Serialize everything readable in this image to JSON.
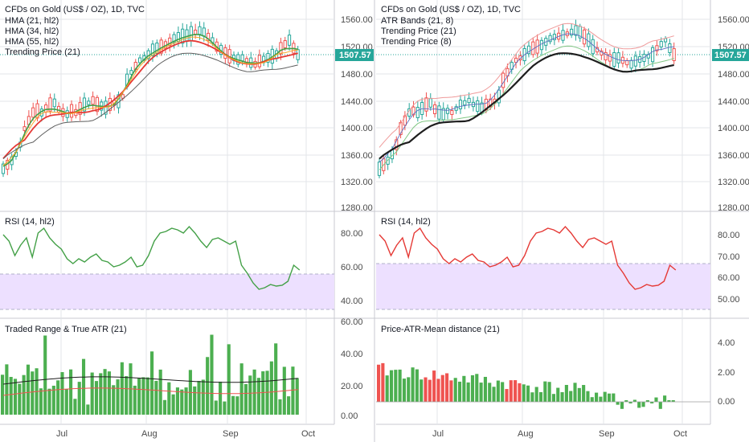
{
  "colors": {
    "up": "#26a69a",
    "down": "#ef5350",
    "grid": "#e3e5ea",
    "border": "#c8cad0",
    "price_line": "#26a69a",
    "rsi_left": "#43a047",
    "rsi_right": "#e53935",
    "rsi_band": "#ede0ff",
    "vol_green": "#4caf50",
    "vol_red": "#ef5350",
    "hma21": "#e53935",
    "hma34": "#43a047",
    "hma55": "#f9a825",
    "trend": "#5d5d5d"
  },
  "left": {
    "title": "CFDs on Gold (US$ / OZ), 1D, TVC",
    "legend": [
      "HMA (21, hl2)",
      "HMA (34, hl2)",
      "HMA (55, hl2)",
      "Trending Price (21)"
    ],
    "rsi_title": "RSI (14, hl2)",
    "vol_title": "Traded Range & True ATR (21)",
    "price_ticks": [
      "1560.00",
      "1520.00",
      "1480.00",
      "1440.00",
      "1400.00",
      "1360.00",
      "1320.00",
      "1280.00"
    ],
    "rsi_ticks": [
      "80.00",
      "60.00",
      "40.00"
    ],
    "vol_ticks": [
      "60.00",
      "40.00",
      "20.00",
      "0.00"
    ],
    "x_ticks": [
      "Jul",
      "Aug",
      "Sep",
      "Oct"
    ],
    "last_price": "1507.57"
  },
  "right": {
    "title": "CFDs on Gold (US$ / OZ), 1D, TVC",
    "legend": [
      "ATR Bands (21, 8)",
      "Trending Price (21)",
      "Trending Price (8)"
    ],
    "rsi_title": "RSI (14, hl2)",
    "vol_title": "Price-ATR-Mean distance (21)",
    "price_ticks": [
      "1560.00",
      "1520.00",
      "1480.00",
      "1440.00",
      "1400.00",
      "1360.00",
      "1320.00",
      "1280.00"
    ],
    "rsi_ticks": [
      "80.00",
      "70.00",
      "60.00",
      "50.00"
    ],
    "vol_ticks": [
      "4.00",
      "2.00",
      "0.00"
    ],
    "x_ticks": [
      "Jul",
      "Aug",
      "Sep",
      "Oct"
    ],
    "last_price": "1507.57"
  }
}
